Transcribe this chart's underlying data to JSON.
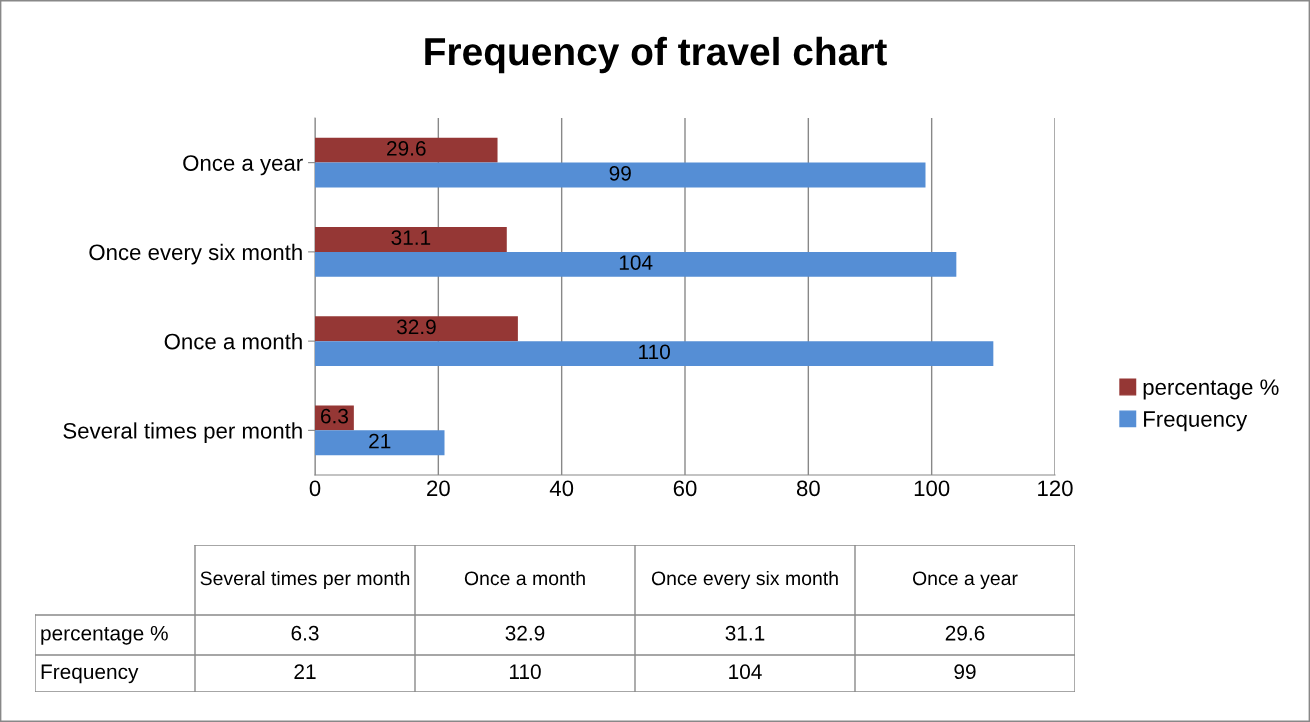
{
  "chart_data": {
    "type": "bar",
    "orientation": "horizontal",
    "title": "Frequency of travel chart",
    "categories": [
      "Once a year",
      "Once every six month",
      "Once a month",
      "Several times per month"
    ],
    "series": [
      {
        "name": "percentage %",
        "color": "#953735",
        "values": [
          29.6,
          31.1,
          32.9,
          6.3
        ]
      },
      {
        "name": "Frequency",
        "color": "#558ed5",
        "values": [
          99,
          104,
          110,
          21
        ]
      }
    ],
    "xlim": [
      0,
      120
    ],
    "xticks": [
      0,
      20,
      40,
      60,
      80,
      100,
      120
    ],
    "grid": "x",
    "legend": "right",
    "data_labels": true,
    "annotations": [
      "6.3",
      "32.9",
      "31.1",
      "29.6",
      "21",
      "110",
      "104",
      "99"
    ]
  }
}
